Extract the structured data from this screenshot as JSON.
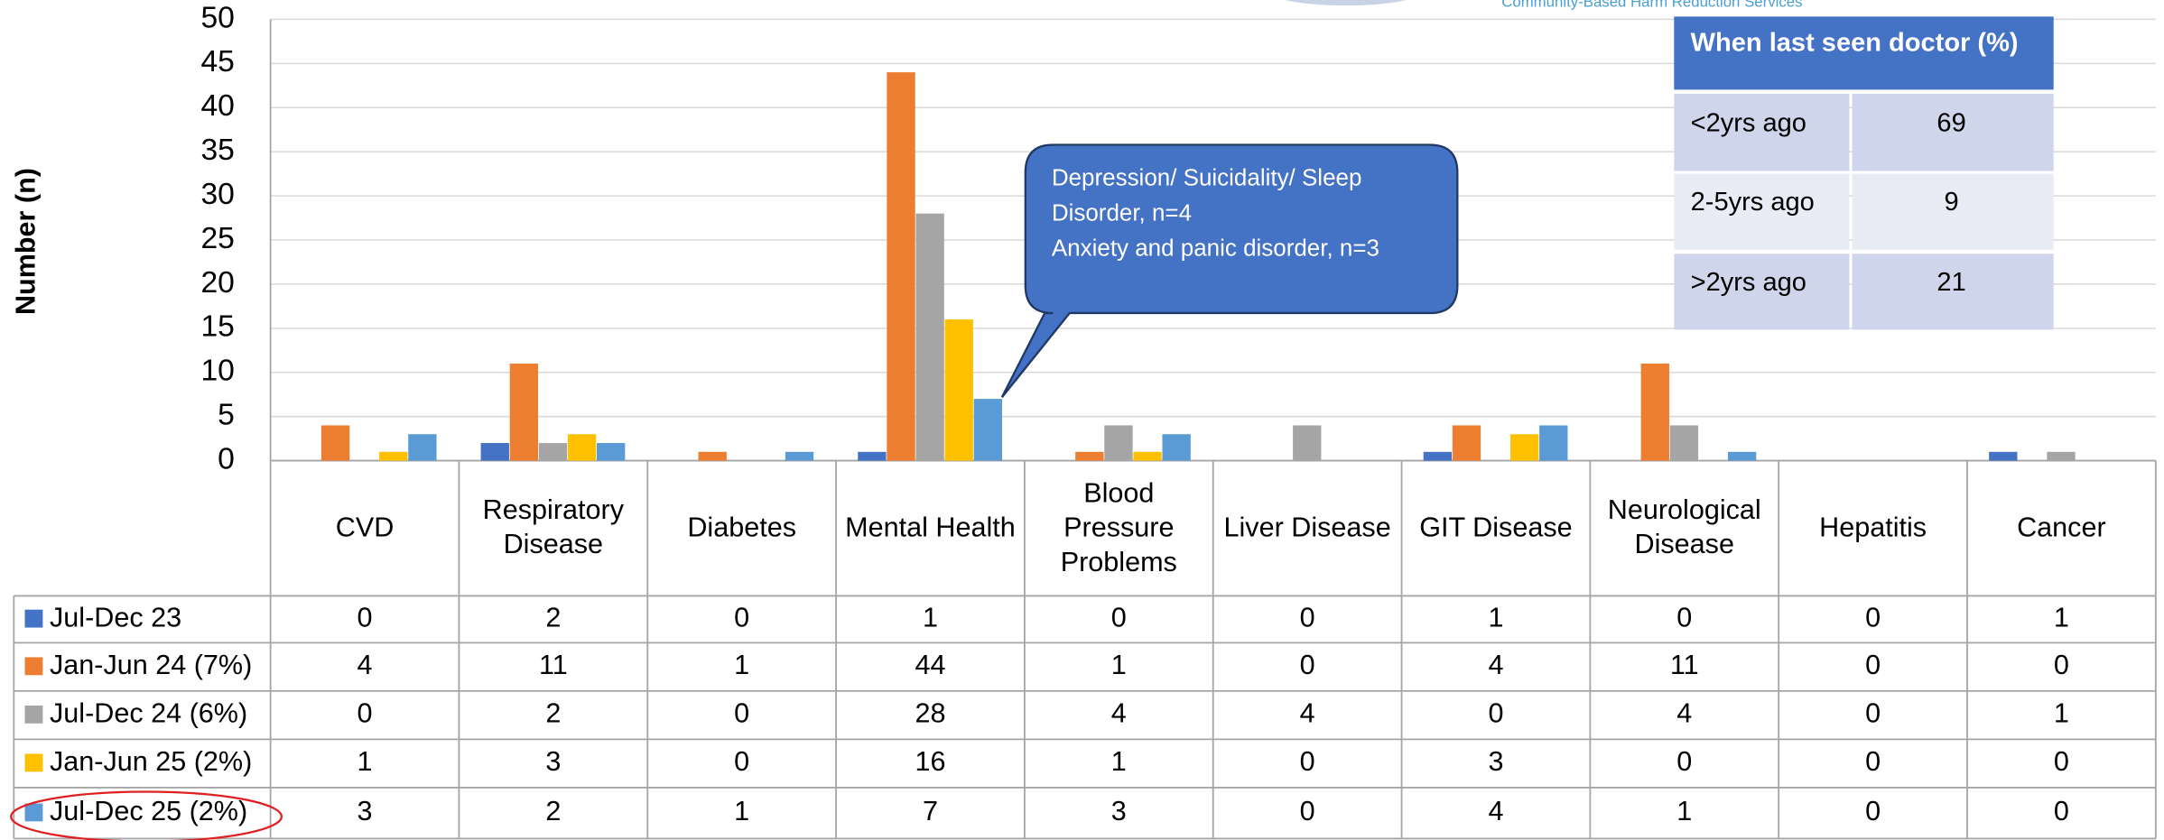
{
  "chart_data": {
    "type": "bar",
    "y_label": "Number (n)",
    "categories": [
      "CVD",
      "Respiratory Disease",
      "Diabetes",
      "Mental Health",
      "Blood Pressure Problems",
      "Liver Disease",
      "GIT Disease",
      "Neurological Disease",
      "Hepatitis",
      "Cancer"
    ],
    "series": [
      {
        "name": "Jul-Dec 23",
        "color": "#4472c4",
        "values": [
          0,
          2,
          0,
          1,
          0,
          0,
          1,
          0,
          0,
          1
        ]
      },
      {
        "name": "Jan-Jun 24 (7%)",
        "color": "#ed7d31",
        "values": [
          4,
          11,
          1,
          44,
          1,
          0,
          4,
          11,
          0,
          0
        ]
      },
      {
        "name": "Jul-Dec 24 (6%)",
        "color": "#a5a5a5",
        "values": [
          0,
          2,
          0,
          28,
          4,
          4,
          0,
          4,
          0,
          1
        ]
      },
      {
        "name": "Jan-Jun 25 (2%)",
        "color": "#ffc000",
        "values": [
          1,
          3,
          0,
          16,
          1,
          0,
          3,
          0,
          0,
          0
        ]
      },
      {
        "name": "Jul-Dec 25 (2%)",
        "color": "#5b9bd5",
        "values": [
          3,
          2,
          1,
          7,
          3,
          0,
          4,
          1,
          0,
          0
        ]
      }
    ],
    "ylim": [
      0,
      50
    ],
    "yticks": [
      0,
      5,
      10,
      15,
      20,
      25,
      30,
      35,
      40,
      45,
      50
    ],
    "grid": true,
    "annotation": [
      "Depression/ Suicidality/ Sleep",
      "Disorder, n=4",
      "Anxiety and panic disorder, n=3"
    ],
    "header_text": "Community-Based Harm Reduction Services",
    "inset_table": {
      "title": "When last seen doctor (%)",
      "rows": [
        [
          "<2yrs ago",
          "69"
        ],
        [
          "2-5yrs ago",
          "9"
        ],
        [
          ">2yrs ago",
          "21"
        ]
      ]
    }
  }
}
